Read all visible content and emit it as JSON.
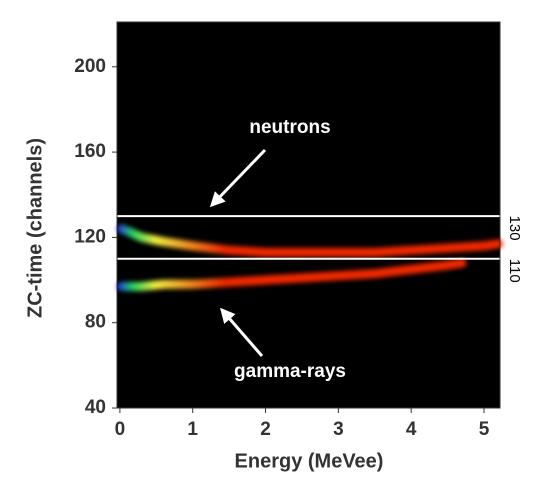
{
  "chart_data": {
    "type": "density-bands",
    "xlabel": "Energy (MeVee)",
    "ylabel": "ZC-time (channels)",
    "xlim": [
      -0.04,
      5.22
    ],
    "ylim": [
      40,
      221
    ],
    "xticks": [
      0,
      1,
      2,
      3,
      4,
      5
    ],
    "yticks": [
      40,
      80,
      120,
      160,
      200
    ],
    "background": "#000000",
    "colorscale": [
      "#2a2aff",
      "#22dd66",
      "#ffff44",
      "#ff2a00"
    ],
    "reference_lines": [
      130,
      110
    ],
    "reference_color": "#ffffff",
    "annotations": [
      "neutrons",
      "gamma-rays"
    ],
    "series": [
      {
        "x": [
          0.02,
          0.1,
          0.3,
          0.6,
          1,
          1.5,
          2,
          2.5,
          3,
          3.5,
          4,
          4.5,
          5,
          5.2
        ],
        "values": [
          124,
          123,
          120,
          118,
          116,
          114,
          113,
          113,
          113,
          113,
          114,
          115,
          116,
          117
        ]
      },
      {
        "x": [
          0.02,
          0.1,
          0.3,
          0.6,
          1,
          1.5,
          2,
          2.5,
          3,
          3.5,
          4,
          4.5,
          4.7
        ],
        "values": [
          97,
          97,
          97,
          98,
          98,
          99,
          100,
          101,
          102,
          103,
          105,
          107,
          108
        ]
      }
    ]
  }
}
